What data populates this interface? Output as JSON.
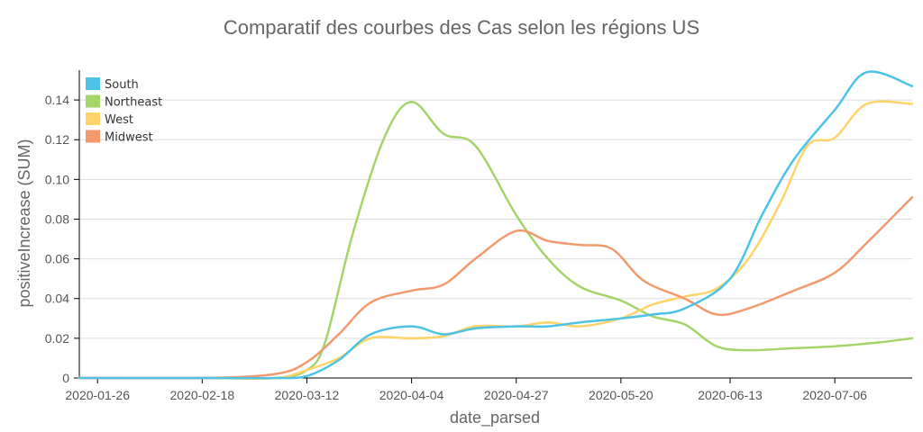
{
  "chart_data": {
    "type": "line",
    "title": "Comparatif des courbes des Cas selon les régions US",
    "xlabel": "date_parsed",
    "ylabel": "positiveIncrease (SUM)",
    "xlim": [
      "2020-01-22",
      "2020-07-23"
    ],
    "ylim": [
      0,
      0.155
    ],
    "x_ticks": [
      "2020-01-26",
      "2020-02-18",
      "2020-03-12",
      "2020-04-04",
      "2020-04-27",
      "2020-05-20",
      "2020-06-13",
      "2020-07-06"
    ],
    "y_ticks": [
      0,
      0.02,
      0.04,
      0.06,
      0.08,
      0.1,
      0.12,
      0.14
    ],
    "y_tick_labels": [
      "0",
      "0.02",
      "0.04",
      "0.06",
      "0.08",
      "0.10",
      "0.12",
      "0.14"
    ],
    "grid": "horizontal",
    "legend_position": "top-left",
    "series": [
      {
        "name": "South",
        "color": "#4cc3e6",
        "points": [
          [
            "2020-01-22",
            0
          ],
          [
            "2020-02-18",
            0
          ],
          [
            "2020-03-05",
            0
          ],
          [
            "2020-03-12",
            0.001
          ],
          [
            "2020-03-19",
            0.009
          ],
          [
            "2020-03-26",
            0.022
          ],
          [
            "2020-04-04",
            0.026
          ],
          [
            "2020-04-11",
            0.022
          ],
          [
            "2020-04-18",
            0.025
          ],
          [
            "2020-04-27",
            0.026
          ],
          [
            "2020-05-04",
            0.026
          ],
          [
            "2020-05-11",
            0.028
          ],
          [
            "2020-05-20",
            0.03
          ],
          [
            "2020-05-27",
            0.032
          ],
          [
            "2020-06-03",
            0.035
          ],
          [
            "2020-06-13",
            0.05
          ],
          [
            "2020-06-20",
            0.082
          ],
          [
            "2020-06-27",
            0.11
          ],
          [
            "2020-07-06",
            0.135
          ],
          [
            "2020-07-13",
            0.154
          ],
          [
            "2020-07-23",
            0.147
          ]
        ]
      },
      {
        "name": "Northeast",
        "color": "#a5d46a",
        "points": [
          [
            "2020-01-22",
            0
          ],
          [
            "2020-02-18",
            0
          ],
          [
            "2020-03-05",
            0
          ],
          [
            "2020-03-12",
            0.004
          ],
          [
            "2020-03-16",
            0.018
          ],
          [
            "2020-03-22",
            0.072
          ],
          [
            "2020-03-29",
            0.121
          ],
          [
            "2020-04-04",
            0.139
          ],
          [
            "2020-04-11",
            0.123
          ],
          [
            "2020-04-18",
            0.117
          ],
          [
            "2020-04-27",
            0.082
          ],
          [
            "2020-05-04",
            0.06
          ],
          [
            "2020-05-11",
            0.046
          ],
          [
            "2020-05-20",
            0.039
          ],
          [
            "2020-05-27",
            0.031
          ],
          [
            "2020-06-03",
            0.027
          ],
          [
            "2020-06-10",
            0.016
          ],
          [
            "2020-06-17",
            0.014
          ],
          [
            "2020-06-27",
            0.015
          ],
          [
            "2020-07-06",
            0.016
          ],
          [
            "2020-07-16",
            0.018
          ],
          [
            "2020-07-23",
            0.02
          ]
        ]
      },
      {
        "name": "West",
        "color": "#fdd36a",
        "points": [
          [
            "2020-01-22",
            0
          ],
          [
            "2020-02-18",
            0
          ],
          [
            "2020-03-05",
            0
          ],
          [
            "2020-03-12",
            0.004
          ],
          [
            "2020-03-19",
            0.01
          ],
          [
            "2020-03-26",
            0.02
          ],
          [
            "2020-04-04",
            0.02
          ],
          [
            "2020-04-11",
            0.021
          ],
          [
            "2020-04-18",
            0.026
          ],
          [
            "2020-04-27",
            0.026
          ],
          [
            "2020-05-04",
            0.028
          ],
          [
            "2020-05-11",
            0.026
          ],
          [
            "2020-05-20",
            0.03
          ],
          [
            "2020-05-27",
            0.037
          ],
          [
            "2020-06-03",
            0.041
          ],
          [
            "2020-06-10",
            0.045
          ],
          [
            "2020-06-17",
            0.06
          ],
          [
            "2020-06-24",
            0.088
          ],
          [
            "2020-06-30",
            0.117
          ],
          [
            "2020-07-06",
            0.121
          ],
          [
            "2020-07-13",
            0.138
          ],
          [
            "2020-07-23",
            0.138
          ]
        ]
      },
      {
        "name": "Midwest",
        "color": "#f29a6e",
        "points": [
          [
            "2020-01-22",
            0
          ],
          [
            "2020-02-18",
            0
          ],
          [
            "2020-03-05",
            0.002
          ],
          [
            "2020-03-12",
            0.008
          ],
          [
            "2020-03-19",
            0.022
          ],
          [
            "2020-03-26",
            0.038
          ],
          [
            "2020-04-04",
            0.044
          ],
          [
            "2020-04-11",
            0.047
          ],
          [
            "2020-04-18",
            0.06
          ],
          [
            "2020-04-27",
            0.074
          ],
          [
            "2020-05-04",
            0.069
          ],
          [
            "2020-05-11",
            0.067
          ],
          [
            "2020-05-18",
            0.065
          ],
          [
            "2020-05-25",
            0.049
          ],
          [
            "2020-06-03",
            0.04
          ],
          [
            "2020-06-10",
            0.032
          ],
          [
            "2020-06-17",
            0.035
          ],
          [
            "2020-06-27",
            0.044
          ],
          [
            "2020-07-06",
            0.053
          ],
          [
            "2020-07-13",
            0.068
          ],
          [
            "2020-07-23",
            0.091
          ]
        ]
      }
    ]
  }
}
